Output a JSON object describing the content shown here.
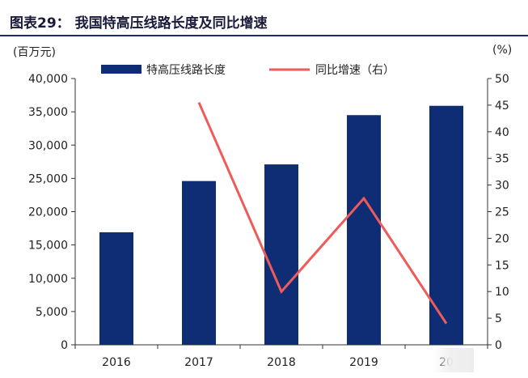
{
  "title": "图表29： 我国特高压线路长度及同比增速",
  "units": {
    "left": "(百万元)",
    "right": "(%)"
  },
  "chart_data": {
    "type": "bar+line",
    "categories": [
      "2016",
      "2017",
      "2018",
      "2019",
      "20"
    ],
    "series": [
      {
        "name": "特高压线路长度",
        "type": "bar",
        "axis": "left",
        "color": "#0f2d75",
        "values": [
          16900,
          24600,
          27100,
          34500,
          35900
        ]
      },
      {
        "name": "同比增速（右）",
        "type": "line",
        "axis": "right",
        "color": "#ef5b5b",
        "values": [
          null,
          45.5,
          10,
          27.5,
          4
        ]
      }
    ],
    "y_left": {
      "min": 0,
      "max": 40000,
      "step": 5000,
      "tick_labels": [
        "0",
        "5,000",
        "10,000",
        "15,000",
        "20,000",
        "25,000",
        "30,000",
        "35,000",
        "40,000"
      ]
    },
    "y_right": {
      "min": 0,
      "max": 50,
      "step": 5,
      "tick_labels": [
        "0",
        "5",
        "10",
        "15",
        "20",
        "25",
        "30",
        "35",
        "40",
        "45",
        "50"
      ]
    },
    "legend_position": "top",
    "grid": false
  }
}
